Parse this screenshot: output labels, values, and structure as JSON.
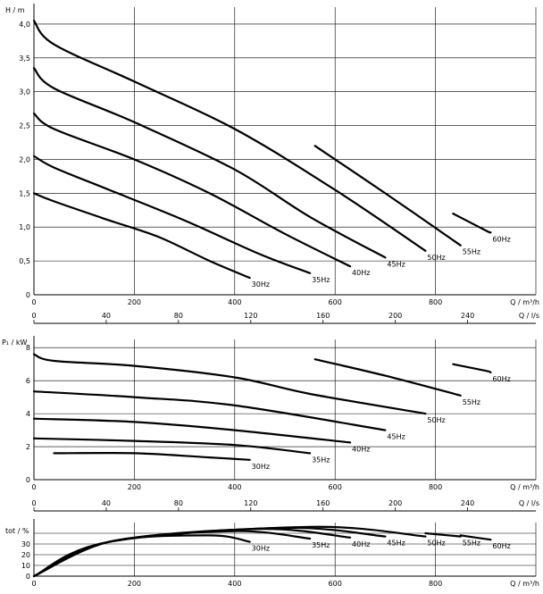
{
  "chart_data": [
    {
      "type": "line",
      "ylabel": "H / m",
      "xlabel": "Q / m³/h",
      "xlabel_secondary": "Q / l/s",
      "xlim": [
        0,
        1000
      ],
      "ylim": [
        0,
        4.25
      ],
      "x_ticks": [
        "0",
        "200",
        "400",
        "600",
        "800"
      ],
      "x_ticks_secondary": [
        "0",
        "40",
        "80",
        "120",
        "160",
        "200",
        "240"
      ],
      "y_ticks": [
        "0",
        "0,5",
        "1,0",
        "1,5",
        "2,0",
        "2,5",
        "3,0",
        "3,5",
        "4,0"
      ],
      "grid": true,
      "series": [
        {
          "name": "30Hz",
          "x": [
            0,
            40,
            150,
            250,
            350,
            430
          ],
          "y": [
            1.5,
            1.38,
            1.1,
            0.85,
            0.5,
            0.25
          ]
        },
        {
          "name": "35Hz",
          "x": [
            0,
            40,
            150,
            300,
            450,
            550
          ],
          "y": [
            2.05,
            1.88,
            1.55,
            1.1,
            0.6,
            0.32
          ]
        },
        {
          "name": "40Hz",
          "x": [
            0,
            40,
            200,
            350,
            500,
            630
          ],
          "y": [
            2.68,
            2.45,
            2.0,
            1.5,
            0.9,
            0.42
          ]
        },
        {
          "name": "45Hz",
          "x": [
            0,
            40,
            200,
            400,
            550,
            700
          ],
          "y": [
            3.35,
            3.05,
            2.55,
            1.85,
            1.15,
            0.55
          ]
        },
        {
          "name": "50Hz",
          "x": [
            0,
            40,
            200,
            400,
            600,
            780
          ],
          "y": [
            4.05,
            3.7,
            3.15,
            2.45,
            1.55,
            0.65
          ]
        },
        {
          "name": "55Hz",
          "x": [
            560,
            700,
            850
          ],
          "y": [
            2.2,
            1.5,
            0.73
          ]
        },
        {
          "name": "60Hz",
          "x": [
            835,
            900,
            910
          ],
          "y": [
            1.2,
            0.95,
            0.92
          ]
        }
      ]
    },
    {
      "type": "line",
      "ylabel": "P₁ / kW",
      "xlabel": "Q / m³/h",
      "xlabel_secondary": "Q / l/s",
      "xlim": [
        0,
        1000
      ],
      "ylim": [
        0,
        8.5
      ],
      "x_ticks": [
        "0",
        "200",
        "400",
        "600",
        "800"
      ],
      "x_ticks_secondary": [
        "0",
        "40",
        "80",
        "120",
        "160",
        "200",
        "240"
      ],
      "y_ticks": [
        "0",
        "2",
        "4",
        "6",
        "8"
      ],
      "grid": true,
      "series": [
        {
          "name": "30Hz",
          "x": [
            40,
            200,
            350,
            430
          ],
          "y": [
            1.6,
            1.6,
            1.35,
            1.2
          ]
        },
        {
          "name": "35Hz",
          "x": [
            0,
            200,
            400,
            550
          ],
          "y": [
            2.5,
            2.35,
            2.1,
            1.6
          ]
        },
        {
          "name": "40Hz",
          "x": [
            0,
            200,
            400,
            630
          ],
          "y": [
            3.7,
            3.5,
            3.0,
            2.25
          ]
        },
        {
          "name": "45Hz",
          "x": [
            0,
            200,
            400,
            700
          ],
          "y": [
            5.35,
            5.0,
            4.5,
            3.0
          ]
        },
        {
          "name": "50Hz",
          "x": [
            0,
            40,
            200,
            400,
            550,
            780
          ],
          "y": [
            7.6,
            7.2,
            6.9,
            6.2,
            5.2,
            4.0
          ]
        },
        {
          "name": "55Hz",
          "x": [
            560,
            700,
            850
          ],
          "y": [
            7.3,
            6.3,
            5.1
          ]
        },
        {
          "name": "60Hz",
          "x": [
            835,
            900,
            910
          ],
          "y": [
            7.0,
            6.6,
            6.5
          ]
        }
      ]
    },
    {
      "type": "line",
      "ylabel": "tot / %",
      "xlabel": "Q / m³/h",
      "xlim": [
        0,
        1000
      ],
      "ylim": [
        0,
        50
      ],
      "x_ticks": [
        "0",
        "200",
        "400",
        "600",
        "800"
      ],
      "y_ticks": [
        "0",
        "10",
        "20",
        "30"
      ],
      "grid": true,
      "series": [
        {
          "name": "30Hz",
          "x": [
            0,
            150,
            350,
            430
          ],
          "y": [
            0,
            32,
            38,
            32
          ]
        },
        {
          "name": "35Hz",
          "x": [
            0,
            150,
            400,
            550
          ],
          "y": [
            0,
            32,
            42,
            35
          ]
        },
        {
          "name": "40Hz",
          "x": [
            0,
            150,
            450,
            630
          ],
          "y": [
            0,
            32,
            44,
            36
          ]
        },
        {
          "name": "45Hz",
          "x": [
            0,
            150,
            500,
            700
          ],
          "y": [
            0,
            32,
            45,
            37
          ]
        },
        {
          "name": "50Hz",
          "x": [
            0,
            150,
            550,
            780
          ],
          "y": [
            0,
            32,
            46,
            37
          ]
        },
        {
          "name": "55Hz",
          "x": [
            780,
            850
          ],
          "y": [
            40,
            37
          ]
        },
        {
          "name": "60Hz",
          "x": [
            850,
            910
          ],
          "y": [
            38,
            34
          ]
        }
      ]
    }
  ]
}
